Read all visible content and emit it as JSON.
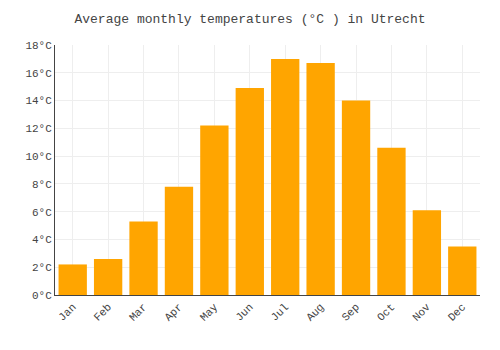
{
  "chart_data": {
    "type": "bar",
    "title": "Average monthly temperatures (°C ) in Utrecht",
    "categories": [
      "Jan",
      "Feb",
      "Mar",
      "Apr",
      "May",
      "Jun",
      "Jul",
      "Aug",
      "Sep",
      "Oct",
      "Nov",
      "Dec"
    ],
    "values": [
      2.2,
      2.6,
      5.3,
      7.8,
      12.2,
      14.9,
      17.0,
      16.7,
      14.0,
      10.6,
      6.1,
      3.5
    ],
    "color": "#FFA500",
    "ylim": [
      0,
      18
    ],
    "yticks": [
      {
        "value": 0,
        "label": "0°C"
      },
      {
        "value": 2,
        "label": "2°C"
      },
      {
        "value": 4,
        "label": "4°C"
      },
      {
        "value": 6,
        "label": "6°C"
      },
      {
        "value": 8,
        "label": "8°C"
      },
      {
        "value": 10,
        "label": "10°C"
      },
      {
        "value": 12,
        "label": "12°C"
      },
      {
        "value": 14,
        "label": "14°C"
      },
      {
        "value": 16,
        "label": "16°C"
      },
      {
        "value": 18,
        "label": "18°C"
      }
    ],
    "grid": true
  }
}
